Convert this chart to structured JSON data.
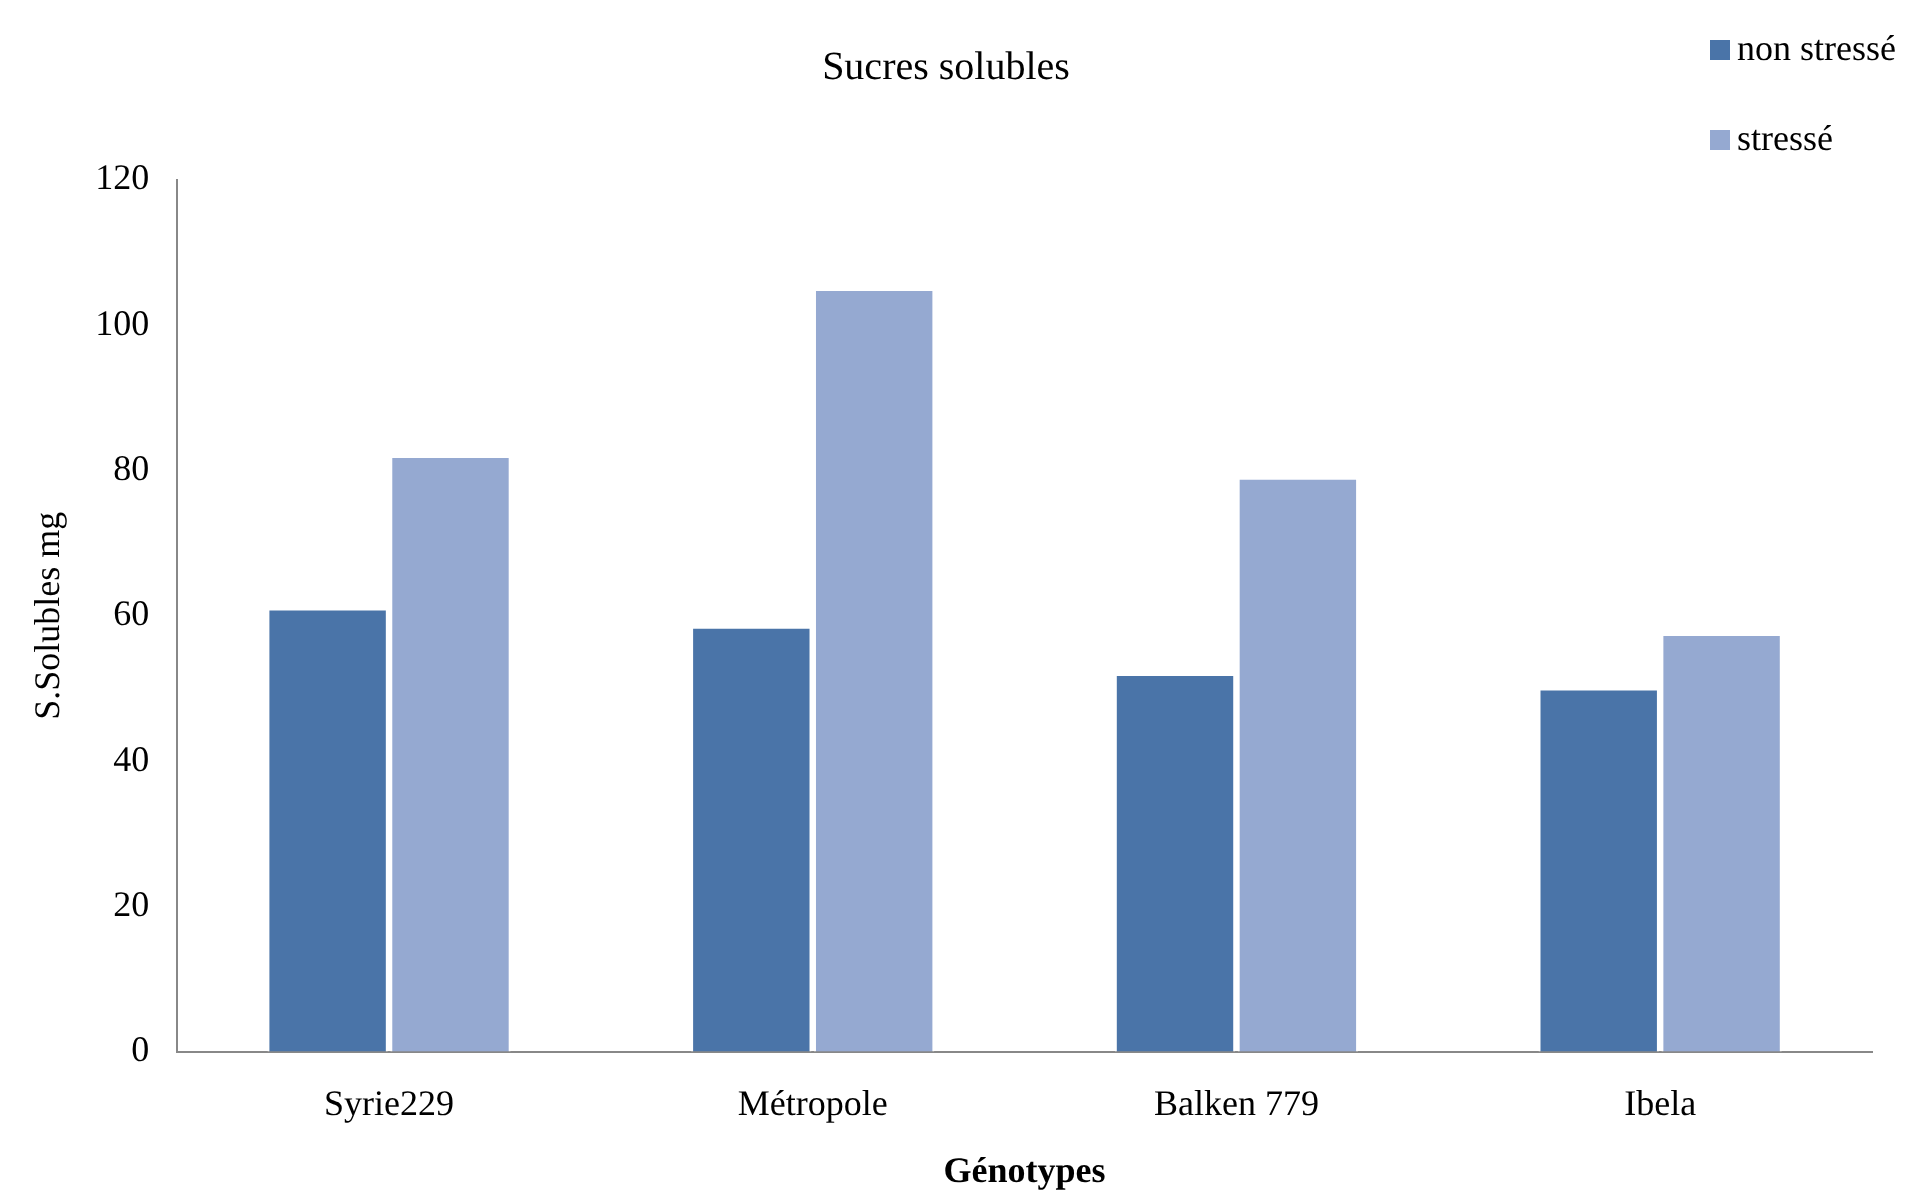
{
  "chart_data": {
    "type": "bar",
    "title": "Sucres solubles",
    "xlabel": "Génotypes",
    "ylabel": "S.Solubles mg",
    "categories": [
      "Syrie229",
      "Métropole",
      "Balken 779",
      "Ibela"
    ],
    "series": [
      {
        "name": "non stressé",
        "color": "#4a74a8",
        "values": [
          61,
          58.5,
          52,
          50
        ]
      },
      {
        "name": "stressé",
        "color": "#95a9d1",
        "values": [
          82,
          105,
          79,
          57.5
        ]
      }
    ],
    "ylim": [
      0,
      120
    ],
    "yticks": [
      0,
      20,
      40,
      60,
      80,
      100,
      120
    ],
    "grid": false,
    "legend": "top right"
  }
}
